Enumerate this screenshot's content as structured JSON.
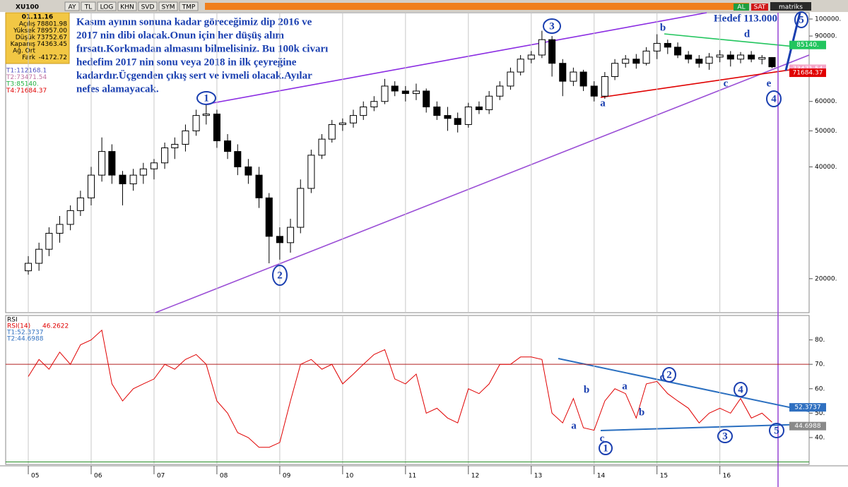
{
  "toolbar": {
    "symbol": "XU100",
    "buttons": [
      "AY",
      "TL",
      "LOG",
      "KHN",
      "SVD",
      "SYM",
      "TMP"
    ],
    "brand": "matriks",
    "buy": "AL",
    "sell": "SAT"
  },
  "info": {
    "date": "01.11.16",
    "rows": [
      {
        "label": "Açılış",
        "value": "78801.98"
      },
      {
        "label": "Yüksek",
        "value": "78957.00"
      },
      {
        "label": "Düşük",
        "value": "73752.67"
      },
      {
        "label": "Kapanış",
        "value": "74363.45"
      },
      {
        "label": "Ağ. Ort"
      },
      {
        "label": "Fark",
        "value": "-4172.72"
      }
    ],
    "targets": [
      {
        "text": "T1:112168.1",
        "color": "#5050c0"
      },
      {
        "text": "T2:73471.54",
        "color": "#c070a0"
      },
      {
        "text": "T3:85140.",
        "color": "#20b040"
      },
      {
        "text": "T4:71684.37",
        "color": "#e00000"
      }
    ]
  },
  "annotation": {
    "lines": [
      "Kasım ayının sonuna kadar göreceğimiz dip 2016 ve",
      "2017 nin dibi olacak.Onun için her düşüş alım",
      "fırsatı.Korkmadan almasını bilmelisiniz. Bu 100k civarı",
      "hedefim 2017 nin sonu veya 2018 in ilk çeyreğine",
      "kadardır.Üçgenden çıkış sert ve ivmeli olacak.Ayılar",
      "nefes alamayacak."
    ],
    "target": "Hedef 113.000",
    "price_waves": [
      "1",
      "2",
      "3",
      "4",
      "5",
      "a",
      "b",
      "c",
      "d",
      "e"
    ],
    "rsi_waves": [
      "a",
      "b",
      "a",
      "b",
      "c",
      "2",
      "4",
      "c",
      "1",
      "3",
      "5"
    ]
  },
  "chart_data": [
    {
      "type": "candlestick",
      "log_scale": true,
      "up_color": "#ffffff",
      "down_color": "#000000",
      "x": [
        2005.0,
        2005.17,
        2005.33,
        2005.5,
        2005.67,
        2005.83,
        2006.0,
        2006.17,
        2006.33,
        2006.5,
        2006.67,
        2006.83,
        2007.0,
        2007.17,
        2007.33,
        2007.5,
        2007.67,
        2007.83,
        2008.0,
        2008.17,
        2008.33,
        2008.5,
        2008.67,
        2008.83,
        2009.0,
        2009.17,
        2009.33,
        2009.5,
        2009.67,
        2009.83,
        2010.0,
        2010.17,
        2010.33,
        2010.5,
        2010.67,
        2010.83,
        2011.0,
        2011.17,
        2011.33,
        2011.5,
        2011.67,
        2011.83,
        2012.0,
        2012.17,
        2012.33,
        2012.5,
        2012.67,
        2012.83,
        2013.0,
        2013.17,
        2013.33,
        2013.5,
        2013.67,
        2013.83,
        2014.0,
        2014.17,
        2014.33,
        2014.5,
        2014.67,
        2014.83,
        2015.0,
        2015.17,
        2015.33,
        2015.5,
        2015.67,
        2015.83,
        2016.0,
        2016.17,
        2016.33,
        2016.5,
        2016.67,
        2016.83
      ],
      "open": [
        21000,
        22000,
        24000,
        26500,
        28000,
        30500,
        33000,
        38000,
        44000,
        38000,
        36000,
        38000,
        39500,
        41000,
        45000,
        46000,
        50000,
        55000,
        55500,
        47000,
        44000,
        40000,
        38000,
        33000,
        26000,
        25000,
        27500,
        35000,
        43000,
        47500,
        52000,
        52500,
        55000,
        58000,
        60000,
        66000,
        64000,
        63000,
        64000,
        58000,
        55000,
        54000,
        52000,
        58000,
        57000,
        62000,
        66000,
        72000,
        78000,
        80000,
        88000,
        76000,
        68000,
        72000,
        66000,
        62000,
        70000,
        76000,
        78000,
        76000,
        82000,
        86000,
        84000,
        80000,
        78000,
        76000,
        79000,
        80000,
        78000,
        80000,
        78000,
        78801.98
      ],
      "high": [
        23000,
        25000,
        27500,
        29500,
        31500,
        34500,
        40000,
        48000,
        46000,
        39000,
        39500,
        41000,
        42000,
        46500,
        48000,
        52000,
        57000,
        59000,
        57000,
        49000,
        46000,
        42000,
        40000,
        34000,
        27500,
        29000,
        37000,
        44500,
        49000,
        53500,
        54000,
        57000,
        60000,
        62000,
        69000,
        68000,
        66000,
        67000,
        65000,
        60000,
        58000,
        56000,
        59500,
        60000,
        64000,
        68000,
        74000,
        80000,
        82000,
        93000,
        90000,
        78000,
        74000,
        73000,
        68000,
        72000,
        78000,
        80000,
        80500,
        84000,
        91000,
        88000,
        86500,
        82000,
        80000,
        81000,
        82500,
        82000,
        81500,
        82000,
        80000,
        78957
      ],
      "low": [
        20500,
        21000,
        23000,
        25000,
        27000,
        29500,
        31500,
        36500,
        36000,
        31500,
        34500,
        36000,
        37000,
        39500,
        42000,
        44000,
        48500,
        52000,
        45000,
        42000,
        38000,
        36000,
        31000,
        22000,
        22500,
        23500,
        26500,
        34000,
        42000,
        46500,
        50000,
        51000,
        53500,
        56500,
        59000,
        62000,
        60000,
        60500,
        56000,
        53500,
        50000,
        49500,
        51000,
        55500,
        55500,
        60500,
        64500,
        70500,
        76000,
        78500,
        70000,
        62000,
        66000,
        64000,
        60000,
        61000,
        68500,
        74000,
        73500,
        75000,
        78000,
        80500,
        78500,
        76000,
        74000,
        73000,
        76500,
        74500,
        76000,
        76500,
        75500,
        73752.67
      ],
      "close": [
        22000,
        24000,
        26500,
        28000,
        30500,
        33000,
        38000,
        44000,
        38000,
        36000,
        38000,
        39500,
        41000,
        45000,
        46000,
        50000,
        55000,
        55500,
        47000,
        44000,
        40000,
        38000,
        33000,
        26000,
        25000,
        27500,
        35000,
        43000,
        47500,
        52000,
        52500,
        55000,
        58000,
        60000,
        66000,
        64000,
        63000,
        64000,
        58000,
        55000,
        54000,
        52000,
        58000,
        57000,
        62000,
        66000,
        72000,
        78000,
        80000,
        88000,
        76000,
        68000,
        72000,
        66000,
        62000,
        70000,
        76000,
        78000,
        76000,
        82000,
        86000,
        84000,
        80000,
        78000,
        76000,
        79000,
        80000,
        78000,
        80000,
        78000,
        78800,
        74363.45
      ],
      "xlim": [
        2004.64,
        2017.42
      ],
      "xticks": [
        {
          "value": 2005,
          "label": "05"
        },
        {
          "value": 2006,
          "label": "06"
        },
        {
          "value": 2007,
          "label": "07"
        },
        {
          "value": 2008,
          "label": "08"
        },
        {
          "value": 2009,
          "label": "09"
        },
        {
          "value": 2010,
          "label": "10"
        },
        {
          "value": 2011,
          "label": "11"
        },
        {
          "value": 2012,
          "label": "12"
        },
        {
          "value": 2013,
          "label": "13"
        },
        {
          "value": 2014,
          "label": "14"
        },
        {
          "value": 2015,
          "label": "15"
        },
        {
          "value": 2016,
          "label": "16"
        }
      ],
      "ylim": [
        16200,
        104000
      ],
      "yticks": [
        {
          "value": 20000,
          "label": "20000."
        },
        {
          "value": 40000,
          "label": "40000."
        },
        {
          "value": 50000,
          "label": "50000."
        },
        {
          "value": 60000,
          "label": "60000."
        },
        {
          "value": 90000,
          "label": "90000."
        },
        {
          "value": 100000,
          "label": "100000."
        }
      ],
      "markers": [
        {
          "value": 85140,
          "label": "85140.",
          "color": "#22c55e"
        },
        {
          "value": 73471.54,
          "label": "73471.54",
          "color": "#f4a6c8"
        },
        {
          "value": 71684.37,
          "label": "71684.37",
          "color": "#e00000"
        }
      ]
    },
    {
      "type": "line",
      "title": "RSI",
      "name": "RSI(14)",
      "last": "46.2622",
      "color": "#e00000",
      "legend": [
        {
          "text": "T1:52.3737",
          "color": "#3070c0"
        },
        {
          "text": "T2:44.6988",
          "color": "#3070c0"
        }
      ],
      "values": [
        65,
        72,
        68,
        75,
        70,
        78,
        80,
        84,
        62,
        55,
        60,
        62,
        64,
        70,
        68,
        72,
        74,
        70,
        55,
        50,
        42,
        40,
        36,
        36,
        38,
        55,
        70,
        72,
        68,
        70,
        62,
        66,
        70,
        74,
        76,
        64,
        62,
        66,
        50,
        52,
        48,
        46,
        60,
        58,
        62,
        70,
        70,
        73,
        73,
        72,
        50,
        46,
        56,
        44,
        43,
        55,
        60,
        58,
        48,
        62,
        63,
        58,
        55,
        52,
        46,
        50,
        52,
        50,
        56,
        48,
        50,
        46.2622
      ],
      "ylim": [
        29,
        90
      ],
      "yticks": [
        {
          "value": 40,
          "label": "40."
        },
        {
          "value": 50,
          "label": "50."
        },
        {
          "value": 60,
          "label": "60."
        },
        {
          "value": 70,
          "label": "70."
        },
        {
          "value": 80,
          "label": "80."
        }
      ],
      "levels": [
        {
          "value": 70,
          "color": "#b22222"
        },
        {
          "value": 30,
          "color": "#228b22"
        }
      ],
      "markers": [
        {
          "value": 52.3737,
          "label": "52.3737",
          "color": "#3070c0"
        },
        {
          "value": 44.6988,
          "label": "44.6988",
          "color": "#8a8a8a"
        }
      ]
    }
  ]
}
